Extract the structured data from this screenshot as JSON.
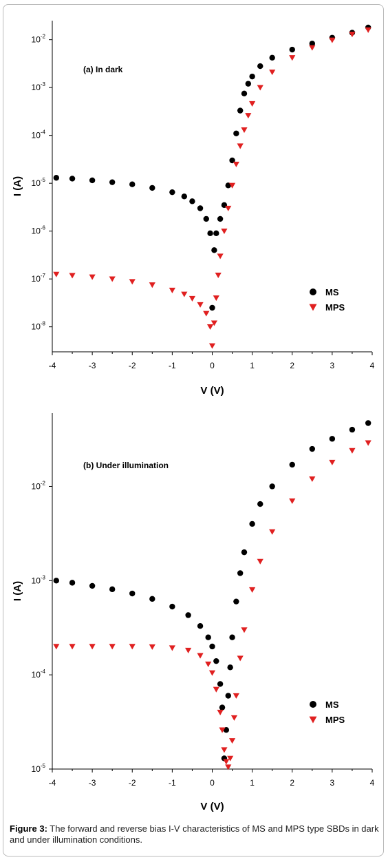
{
  "caption": {
    "label": "Figure 3:",
    "text": " The forward and reverse bias I-V characteristics of MS and MPS type SBDs in dark and under illumination conditions."
  },
  "colors": {
    "MS": "#000000",
    "MPS": "#e02020"
  },
  "chart_data": [
    {
      "type": "scatter",
      "title": "(a) In dark",
      "xlabel": "V (V)",
      "ylabel": "I (A)",
      "xlim": [
        -4,
        4
      ],
      "ylim": [
        3e-09,
        0.025
      ],
      "log_y": true,
      "x_ticks": [
        "-4",
        "-3",
        "-2",
        "-1",
        "0",
        "1",
        "2",
        "3",
        "4"
      ],
      "y_ticks": [
        {
          "base": "10",
          "exp": "-8",
          "value": 1e-08
        },
        {
          "base": "10",
          "exp": "-7",
          "value": 1e-07
        },
        {
          "base": "10",
          "exp": "-6",
          "value": 1e-06
        },
        {
          "base": "10",
          "exp": "-5",
          "value": 1e-05
        },
        {
          "base": "10",
          "exp": "-4",
          "value": 0.0001
        },
        {
          "base": "10",
          "exp": "-3",
          "value": 0.001
        },
        {
          "base": "10",
          "exp": "-2",
          "value": 0.01
        }
      ],
      "legend_position": "lower-right",
      "series": [
        {
          "name": "MS",
          "marker": "circle",
          "x": [
            -3.9,
            -3.5,
            -3.0,
            -2.5,
            -2.0,
            -1.5,
            -1.0,
            -0.7,
            -0.5,
            -0.3,
            -0.15,
            -0.05,
            0.0,
            0.05,
            0.1,
            0.2,
            0.3,
            0.4,
            0.5,
            0.6,
            0.7,
            0.8,
            0.9,
            1.0,
            1.2,
            1.5,
            2.0,
            2.5,
            3.0,
            3.5,
            3.9
          ],
          "y": [
            1.3e-05,
            1.25e-05,
            1.15e-05,
            1.05e-05,
            9.5e-06,
            8e-06,
            6.5e-06,
            5.3e-06,
            4.2e-06,
            3e-06,
            1.8e-06,
            9e-07,
            2.5e-08,
            4e-07,
            9e-07,
            1.8e-06,
            3.5e-06,
            9e-06,
            3e-05,
            0.00011,
            0.00033,
            0.00075,
            0.0012,
            0.0017,
            0.0028,
            0.0042,
            0.0062,
            0.0083,
            0.011,
            0.014,
            0.018
          ]
        },
        {
          "name": "MPS",
          "marker": "triangle-down",
          "x": [
            -3.9,
            -3.5,
            -3.0,
            -2.5,
            -2.0,
            -1.5,
            -1.0,
            -0.7,
            -0.5,
            -0.3,
            -0.15,
            -0.05,
            0.0,
            0.05,
            0.1,
            0.15,
            0.2,
            0.3,
            0.4,
            0.5,
            0.6,
            0.7,
            0.8,
            0.9,
            1.0,
            1.2,
            1.5,
            2.0,
            2.5,
            3.0,
            3.5,
            3.9
          ],
          "y": [
            1.25e-07,
            1.18e-07,
            1.1e-07,
            1e-07,
            8.8e-08,
            7.5e-08,
            5.8e-08,
            4.8e-08,
            3.9e-08,
            2.9e-08,
            1.9e-08,
            1e-08,
            4e-09,
            1.2e-08,
            4e-08,
            1.2e-07,
            3e-07,
            1e-06,
            3e-06,
            9e-06,
            2.5e-05,
            6e-05,
            0.00013,
            0.00026,
            0.00046,
            0.001,
            0.0021,
            0.0042,
            0.0068,
            0.0098,
            0.013,
            0.016
          ]
        }
      ]
    },
    {
      "type": "scatter",
      "title": "(b) Under illumination",
      "xlabel": "V (V)",
      "ylabel": "I (A)",
      "xlim": [
        -4,
        4
      ],
      "ylim": [
        1e-05,
        0.06
      ],
      "log_y": true,
      "x_ticks": [
        "-4",
        "-3",
        "-2",
        "-1",
        "0",
        "1",
        "2",
        "3",
        "4"
      ],
      "y_ticks": [
        {
          "base": "10",
          "exp": "-5",
          "value": 1e-05
        },
        {
          "base": "10",
          "exp": "-4",
          "value": 0.0001
        },
        {
          "base": "10",
          "exp": "-3",
          "value": 0.001
        },
        {
          "base": "10",
          "exp": "-2",
          "value": 0.01
        }
      ],
      "legend_position": "lower-right",
      "series": [
        {
          "name": "MS",
          "marker": "circle",
          "x": [
            -3.9,
            -3.5,
            -3.0,
            -2.5,
            -2.0,
            -1.5,
            -1.0,
            -0.6,
            -0.3,
            -0.1,
            0.0,
            0.1,
            0.2,
            0.25,
            0.3,
            0.35,
            0.4,
            0.45,
            0.5,
            0.6,
            0.7,
            0.8,
            1.0,
            1.2,
            1.5,
            2.0,
            2.5,
            3.0,
            3.5,
            3.9
          ],
          "y": [
            0.001,
            0.00095,
            0.00088,
            0.00081,
            0.00073,
            0.00064,
            0.00053,
            0.00043,
            0.00033,
            0.00025,
            0.0002,
            0.00014,
            8e-05,
            4.5e-05,
            1.3e-05,
            2.6e-05,
            6e-05,
            0.00012,
            0.00025,
            0.0006,
            0.0012,
            0.002,
            0.004,
            0.0065,
            0.01,
            0.017,
            0.025,
            0.032,
            0.04,
            0.047
          ]
        },
        {
          "name": "MPS",
          "marker": "triangle-down",
          "x": [
            -3.9,
            -3.5,
            -3.0,
            -2.5,
            -2.0,
            -1.5,
            -1.0,
            -0.6,
            -0.3,
            -0.1,
            0.0,
            0.1,
            0.2,
            0.25,
            0.3,
            0.35,
            0.4,
            0.45,
            0.5,
            0.55,
            0.6,
            0.7,
            0.8,
            1.0,
            1.2,
            1.5,
            2.0,
            2.5,
            3.0,
            3.5,
            3.9
          ],
          "y": [
            0.0002,
            0.0002,
            0.0002,
            0.0002,
            0.0002,
            0.000198,
            0.000193,
            0.000182,
            0.00016,
            0.00013,
            0.000105,
            7e-05,
            4e-05,
            2.6e-05,
            1.6e-05,
            1.2e-05,
            1.05e-05,
            1.3e-05,
            2e-05,
            3.5e-05,
            6e-05,
            0.00015,
            0.0003,
            0.0008,
            0.0016,
            0.0033,
            0.007,
            0.012,
            0.018,
            0.024,
            0.029
          ]
        }
      ]
    }
  ]
}
